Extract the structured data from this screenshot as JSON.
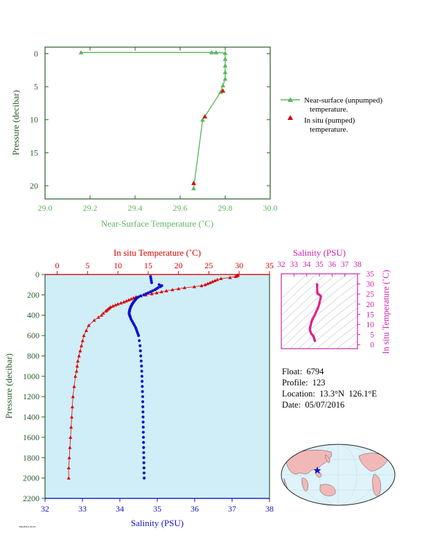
{
  "colors": {
    "green": "#5cb85c",
    "red": "#dd0000",
    "blue": "#1010cc",
    "magenta": "#cc22aa",
    "axis_dark": "#2a5a2a",
    "profile_bg": "#cfeef8",
    "land": "#f2b8b8",
    "ocean": "#dff3fb"
  },
  "chart_data": [
    {
      "id": "near-surface",
      "type": "line",
      "xlabel": "Near-Surface Temperature (˚C)",
      "ylabel": "Pressure (decibar)",
      "xlim": [
        29.0,
        30.0
      ],
      "ylim": [
        22,
        -1
      ],
      "xticks": [
        "29.0",
        "29.2",
        "29.4",
        "29.6",
        "29.8",
        "30.0"
      ],
      "yticks": [
        "0",
        "5",
        "10",
        "15",
        "20"
      ],
      "series": [
        {
          "name": "Near-surface (unpumped) temperature.",
          "marker": "triangle",
          "color": "green",
          "x": [
            29.16,
            29.74,
            29.76,
            29.8,
            29.8,
            29.8,
            29.8,
            29.8,
            29.79,
            29.78,
            29.7,
            29.66
          ],
          "y": [
            -0.2,
            -0.2,
            -0.2,
            -0.1,
            0.8,
            1.8,
            2.8,
            3.8,
            4.8,
            5.8,
            10.0,
            20.4
          ]
        },
        {
          "name": "In situ (pumped) temperature.",
          "marker": "triangle",
          "color": "red",
          "x": [
            29.79,
            29.71,
            29.66
          ],
          "y": [
            5.6,
            9.5,
            19.6
          ]
        }
      ],
      "legend": "right"
    },
    {
      "id": "profile",
      "type": "scatter",
      "title_top": "In situ Temperature (˚C)",
      "xlabel": "Salinity (PSU)",
      "ylabel": "Pressure (decibar)",
      "temp_xlim": [
        -2,
        35
      ],
      "temp_ticks": [
        "0",
        "5",
        "10",
        "15",
        "20",
        "25",
        "30",
        "35"
      ],
      "sal_xlim": [
        32,
        38
      ],
      "sal_ticks": [
        "32",
        "33",
        "34",
        "35",
        "36",
        "37",
        "38"
      ],
      "ylim": [
        0,
        2200
      ],
      "yticks": [
        "0",
        "200",
        "400",
        "600",
        "800",
        "1000",
        "1200",
        "1400",
        "1600",
        "1800",
        "2000",
        "2200"
      ],
      "temperature": {
        "p": [
          5,
          10,
          15,
          20,
          30,
          40,
          50,
          60,
          70,
          80,
          90,
          100,
          110,
          120,
          130,
          140,
          150,
          160,
          170,
          180,
          190,
          200,
          210,
          220,
          230,
          240,
          250,
          260,
          270,
          280,
          290,
          300,
          310,
          320,
          330,
          340,
          350,
          360,
          380,
          400,
          420,
          450,
          500,
          550,
          600,
          650,
          700,
          750,
          800,
          850,
          900,
          950,
          1000,
          1100,
          1200,
          1300,
          1400,
          1500,
          1600,
          1700,
          1800,
          1900,
          2000
        ],
        "t": [
          29.8,
          29.7,
          29.6,
          29.4,
          28.5,
          27.0,
          26.4,
          26.0,
          25.6,
          25.2,
          24.8,
          24.4,
          23.8,
          22.6,
          21.0,
          20.0,
          19.0,
          18.0,
          17.2,
          16.4,
          15.6,
          14.6,
          13.8,
          13.0,
          12.6,
          12.2,
          11.8,
          11.4,
          11.0,
          10.5,
          10.0,
          9.6,
          9.2,
          8.8,
          8.6,
          8.4,
          8.2,
          8.0,
          7.6,
          7.3,
          6.8,
          6.1,
          5.2,
          4.8,
          4.4,
          4.2,
          4.0,
          3.8,
          3.6,
          3.4,
          3.3,
          3.2,
          3.0,
          2.8,
          2.6,
          2.5,
          2.4,
          2.3,
          2.2,
          2.1,
          2.0,
          1.9,
          1.9
        ]
      },
      "salinity": {
        "p": [
          20,
          40,
          60,
          80,
          100,
          110,
          120,
          130,
          140,
          150,
          160,
          170,
          180,
          190,
          200,
          210,
          220,
          230,
          240,
          250,
          260,
          270,
          280,
          290,
          300,
          310,
          320,
          330,
          340,
          350,
          360,
          370,
          380,
          390,
          400,
          410,
          420,
          440,
          460,
          480,
          500,
          520,
          540,
          560,
          580,
          600,
          650,
          700,
          750,
          800,
          850,
          900,
          950,
          1000,
          1050,
          1100,
          1150,
          1200,
          1250,
          1300,
          1350,
          1400,
          1450,
          1500,
          1550,
          1600,
          1650,
          1700,
          1750,
          1800,
          1850,
          1900,
          1950,
          2000
        ],
        "s": [
          34.82,
          34.83,
          34.84,
          34.85,
          35.05,
          35.12,
          35.08,
          35.02,
          34.98,
          34.94,
          34.88,
          34.82,
          34.76,
          34.7,
          34.64,
          34.56,
          34.5,
          34.46,
          34.43,
          34.41,
          34.39,
          34.37,
          34.35,
          34.33,
          34.32,
          34.3,
          34.29,
          34.28,
          34.27,
          34.26,
          34.26,
          34.25,
          34.25,
          34.25,
          34.26,
          34.27,
          34.28,
          34.3,
          34.33,
          34.36,
          34.39,
          34.42,
          34.44,
          34.46,
          34.48,
          34.5,
          34.52,
          34.54,
          34.55,
          34.56,
          34.57,
          34.58,
          34.585,
          34.59,
          34.595,
          34.6,
          34.605,
          34.61,
          34.612,
          34.615,
          34.618,
          34.62,
          34.622,
          34.625,
          34.627,
          34.63,
          34.632,
          34.635,
          34.637,
          34.64,
          34.642,
          34.645,
          34.647,
          34.65
        ]
      }
    },
    {
      "id": "ts-diagram",
      "type": "scatter",
      "title_top": "Salinity (PSU)",
      "ylabel": "In situ Temperature (˚C)",
      "sal_xlim": [
        32,
        38
      ],
      "sal_ticks": [
        "32",
        "33",
        "34",
        "35",
        "36",
        "37",
        "38"
      ],
      "temp_ylim": [
        -2,
        35
      ],
      "temp_ticks": [
        "0",
        "5",
        "10",
        "15",
        "20",
        "25",
        "30",
        "35"
      ]
    }
  ],
  "info": {
    "float": "Float:  6794",
    "profile": "Profile:  123",
    "location": "Location:  13.3°N  126.1°E",
    "date": "Date:  05/07/2016"
  },
  "footer": "PROFILE PLOT"
}
